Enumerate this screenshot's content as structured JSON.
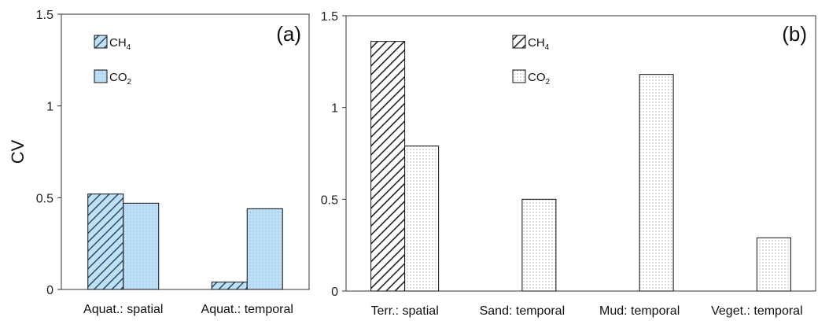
{
  "ylabel": "CV",
  "chart_data": [
    {
      "type": "bar",
      "panel_label": "(a)",
      "ylabel": "CV",
      "ylim": [
        0,
        1.5
      ],
      "yticks": [
        "0",
        "0.5",
        "1",
        "1.5"
      ],
      "categories": [
        "Aquat.: spatial",
        "Aquat.: temporal"
      ],
      "legend_position": "top-left",
      "series": [
        {
          "name": "CH4",
          "name_main": "CH",
          "name_sub": "4",
          "pattern": "hatch-blue",
          "values": [
            0.52,
            0.04
          ]
        },
        {
          "name": "CO2",
          "name_main": "CO",
          "name_sub": "2",
          "pattern": "dots-blue",
          "values": [
            0.47,
            0.44
          ]
        }
      ]
    },
    {
      "type": "bar",
      "panel_label": "(b)",
      "ylim": [
        0,
        1.5
      ],
      "yticks": [
        "0",
        "0.5",
        "1",
        "1.5"
      ],
      "categories": [
        "Terr.: spatial",
        "Sand: temporal",
        "Mud: temporal",
        "Veget.: temporal"
      ],
      "legend_position": "top-center",
      "series": [
        {
          "name": "CH4",
          "name_main": "CH",
          "name_sub": "4",
          "pattern": "hatch-white",
          "values": [
            1.36,
            null,
            null,
            null
          ]
        },
        {
          "name": "CO2",
          "name_main": "CO",
          "name_sub": "2",
          "pattern": "dots-white",
          "values": [
            0.79,
            0.5,
            1.18,
            0.29
          ]
        }
      ]
    }
  ]
}
